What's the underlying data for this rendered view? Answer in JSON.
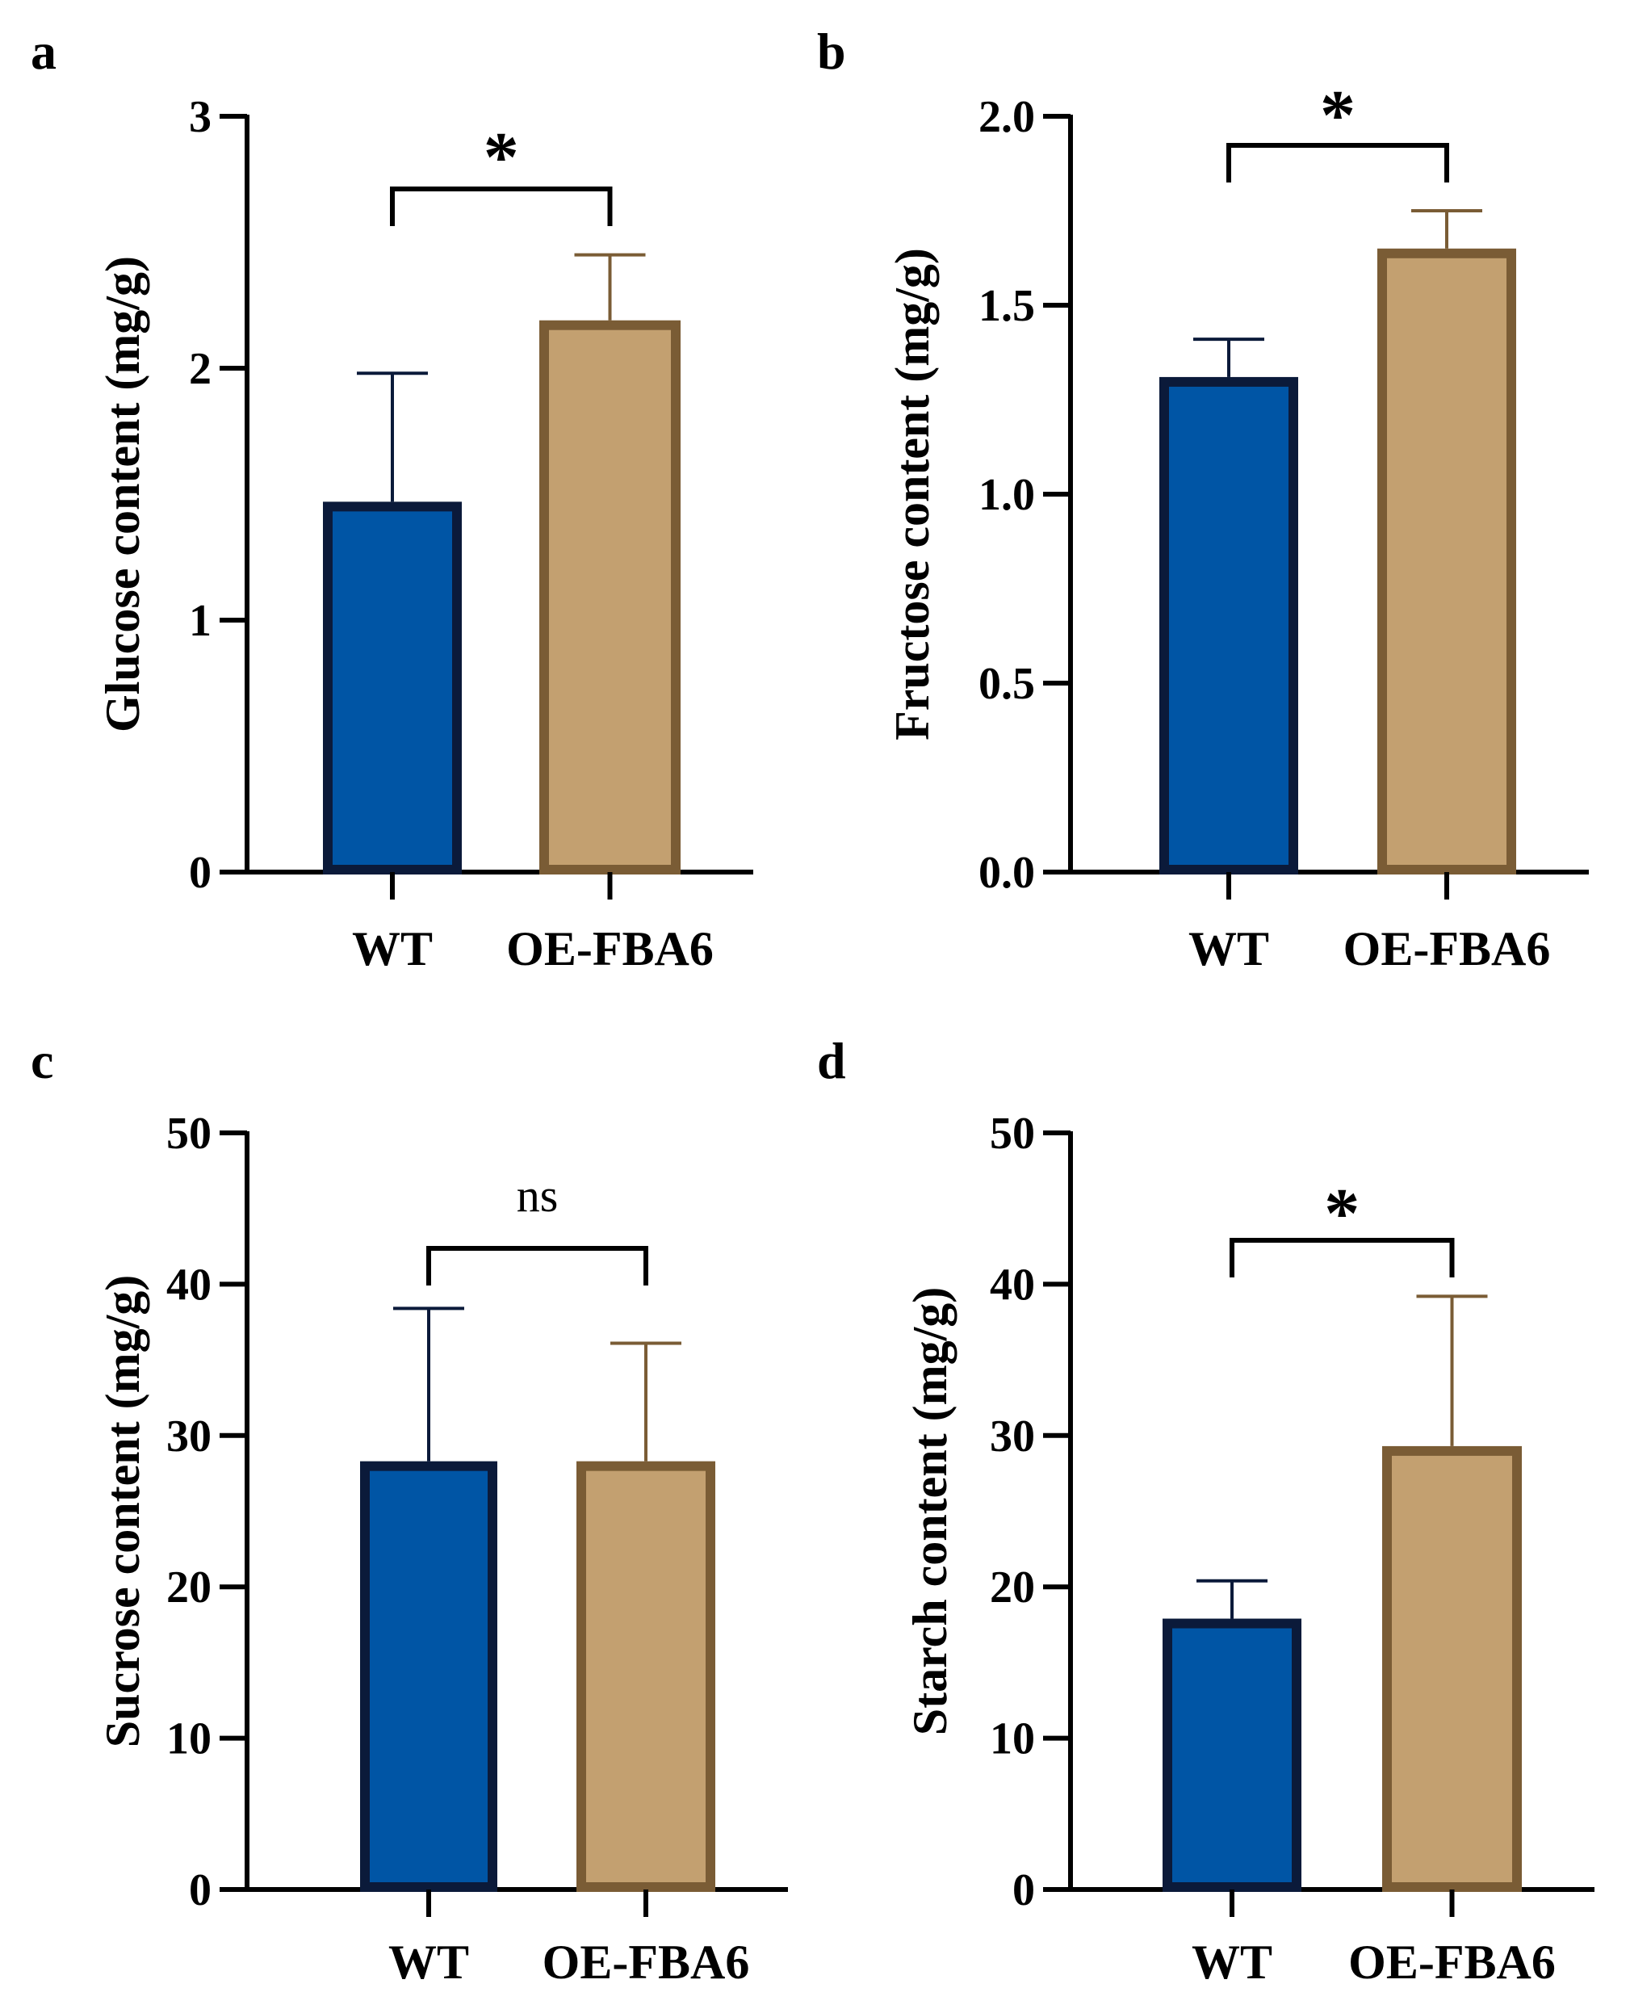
{
  "colors": {
    "wt_fill": "#0055a5",
    "wt_edge": "#0b1a3a",
    "oe_fill": "#c3a070",
    "oe_edge": "#7a5c35",
    "axis": "#000000"
  },
  "chart_data": [
    {
      "panel": "a",
      "type": "bar",
      "categories": [
        "WT",
        "OE-FBA6"
      ],
      "values": [
        1.47,
        2.19
      ],
      "errors": [
        0.51,
        0.26
      ],
      "ylabel": "Glucose content (mg/g)",
      "ylim": [
        0,
        3
      ],
      "yticks": [
        0,
        1,
        2,
        3
      ],
      "ytick_labels": [
        "0",
        "1",
        "2",
        "3"
      ],
      "significance": "*"
    },
    {
      "panel": "b",
      "type": "bar",
      "categories": [
        "WT",
        "OE-FBA6"
      ],
      "values": [
        1.31,
        1.65
      ],
      "errors": [
        0.1,
        0.1
      ],
      "ylabel": "Fructose content (mg/g)",
      "ylim": [
        0,
        2
      ],
      "yticks": [
        0,
        0.5,
        1,
        1.5,
        2
      ],
      "ytick_labels": [
        "0.0",
        "0.5",
        "1.0",
        "1.5",
        "2.0"
      ],
      "significance": "*"
    },
    {
      "panel": "c",
      "type": "bar",
      "categories": [
        "WT",
        "OE-FBA6"
      ],
      "values": [
        28.3,
        28.3
      ],
      "errors": [
        10.1,
        7.8
      ],
      "ylabel": "Sucrose content (mg/g)",
      "ylim": [
        0,
        50
      ],
      "yticks": [
        0,
        10,
        20,
        30,
        40,
        50
      ],
      "ytick_labels": [
        "0",
        "10",
        "20",
        "30",
        "40",
        "50"
      ],
      "significance": "ns"
    },
    {
      "panel": "d",
      "type": "bar",
      "categories": [
        "WT",
        "OE-FBA6"
      ],
      "values": [
        17.9,
        29.3
      ],
      "errors": [
        2.5,
        9.9
      ],
      "ylabel": "Starch content (mg/g)",
      "ylim": [
        0,
        50
      ],
      "yticks": [
        0,
        10,
        20,
        30,
        40,
        50
      ],
      "ytick_labels": [
        "0",
        "10",
        "20",
        "30",
        "40",
        "50"
      ],
      "significance": "*"
    }
  ]
}
